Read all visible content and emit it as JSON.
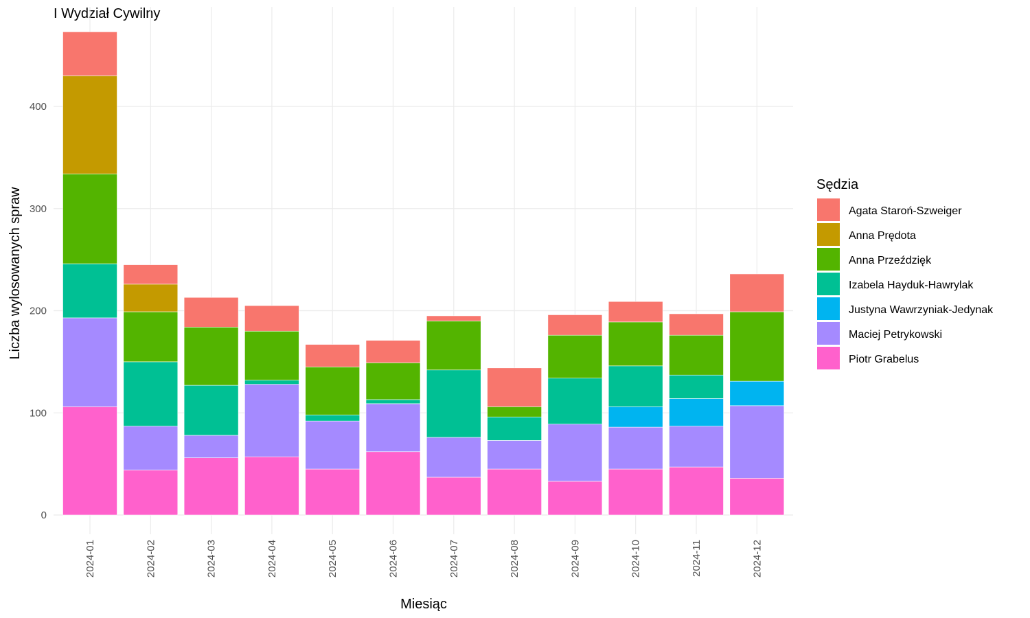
{
  "chart_data": {
    "type": "bar",
    "stacked": true,
    "title": "I Wydział Cywilny",
    "xlabel": "Miesiąc",
    "ylabel": "Liczba wylosowanych spraw",
    "ylim": [
      0,
      480
    ],
    "yticks": [
      0,
      100,
      200,
      300,
      400
    ],
    "grid": true,
    "legend_title": "Sędzia",
    "legend_position": "right",
    "categories": [
      "2024-01",
      "2024-02",
      "2024-03",
      "2024-04",
      "2024-05",
      "2024-06",
      "2024-07",
      "2024-08",
      "2024-09",
      "2024-10",
      "2024-11",
      "2024-12"
    ],
    "series": [
      {
        "name": "Piotr Grabelus",
        "color": "#FF61CC",
        "values": [
          106,
          44,
          56,
          57,
          45,
          62,
          37,
          45,
          33,
          45,
          47,
          36
        ]
      },
      {
        "name": "Maciej Petrykowski",
        "color": "#A58AFF",
        "values": [
          87,
          43,
          22,
          71,
          47,
          47,
          39,
          28,
          56,
          41,
          40,
          71
        ]
      },
      {
        "name": "Justyna Wawrzyniak-Jedynak",
        "color": "#00B4F0",
        "values": [
          0,
          0,
          0,
          0,
          0,
          0,
          0,
          0,
          0,
          20,
          27,
          24
        ]
      },
      {
        "name": "Izabela Hayduk-Hawrylak",
        "color": "#00C094",
        "values": [
          53,
          63,
          49,
          4,
          6,
          4,
          66,
          23,
          45,
          40,
          23,
          0
        ]
      },
      {
        "name": "Anna Przeździęk",
        "color": "#53B400",
        "values": [
          88,
          49,
          57,
          48,
          47,
          36,
          48,
          10,
          42,
          43,
          39,
          68
        ]
      },
      {
        "name": "Anna Prędota",
        "color": "#C49A00",
        "values": [
          96,
          27,
          0,
          0,
          0,
          0,
          0,
          0,
          0,
          0,
          0,
          0
        ]
      },
      {
        "name": "Agata Staroń-Szweiger",
        "color": "#F8766D",
        "values": [
          43,
          19,
          29,
          25,
          22,
          22,
          5,
          38,
          20,
          20,
          21,
          37
        ]
      }
    ],
    "legend_order": [
      "Agata Staroń-Szweiger",
      "Anna Prędota",
      "Anna Przeździęk",
      "Izabela Hayduk-Hawrylak",
      "Justyna Wawrzyniak-Jedynak",
      "Maciej Petrykowski",
      "Piotr Grabelus"
    ]
  }
}
